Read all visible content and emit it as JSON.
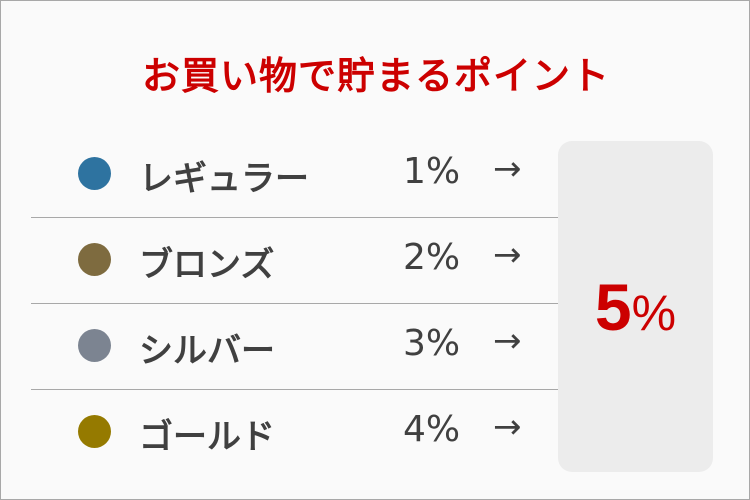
{
  "title": "お買い物で貯まるポイント",
  "tiers": [
    {
      "label": "レギュラー",
      "rate": "1%",
      "arrow": "→",
      "color": "#2e73a0"
    },
    {
      "label": "ブロンズ",
      "rate": "2%",
      "arrow": "→",
      "color": "#7e6b3f"
    },
    {
      "label": "シルバー",
      "rate": "3%",
      "arrow": "→",
      "color": "#7c8491"
    },
    {
      "label": "ゴールド",
      "rate": "4%",
      "arrow": "→",
      "color": "#957a00"
    }
  ],
  "result": {
    "number": "5",
    "unit": "%"
  },
  "colors": {
    "accent": "#cc0000",
    "text": "#404040",
    "box": "#ececec"
  }
}
